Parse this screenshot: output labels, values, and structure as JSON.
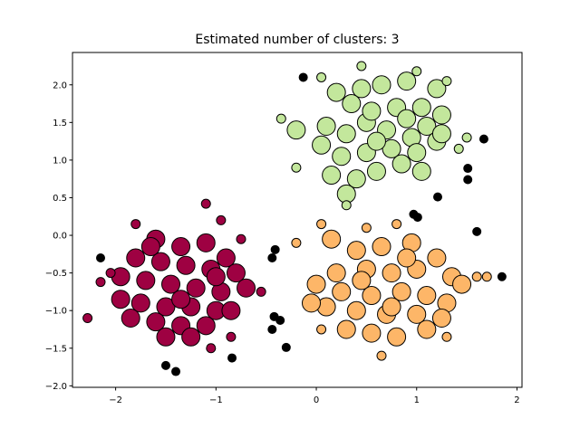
{
  "chart_data": {
    "type": "scatter",
    "title": "Estimated number of clusters: 3",
    "xlabel": "",
    "ylabel": "",
    "xlim": [
      -2.43,
      2.05
    ],
    "ylim": [
      -2.02,
      2.43
    ],
    "xticks": [
      -2,
      -1,
      0,
      1,
      2
    ],
    "xtick_labels": [
      "−2",
      "−1",
      "0",
      "1",
      "2"
    ],
    "yticks": [
      2.0,
      1.5,
      1.0,
      0.5,
      0.0,
      -0.5,
      -1.0,
      -1.5,
      -2.0
    ],
    "ytick_labels": [
      "2.0",
      "1.5",
      "1.0",
      "0.5",
      "0.0",
      "−0.5",
      "−1.0",
      "−1.5",
      "−2.0"
    ],
    "grid": false,
    "legend": "none",
    "point_format": "[x, y, core(1) or border(0)]",
    "series": [
      {
        "color": "#c3e79c",
        "points": [
          [
            0.2,
            1.9,
            1
          ],
          [
            0.45,
            1.95,
            1
          ],
          [
            0.65,
            2.0,
            1
          ],
          [
            0.9,
            2.05,
            1
          ],
          [
            1.2,
            1.95,
            1
          ],
          [
            1.25,
            1.6,
            1
          ],
          [
            1.1,
            1.45,
            1
          ],
          [
            0.95,
            1.3,
            1
          ],
          [
            0.7,
            1.4,
            1
          ],
          [
            0.5,
            1.5,
            1
          ],
          [
            0.3,
            1.35,
            1
          ],
          [
            0.1,
            1.45,
            1
          ],
          [
            -0.2,
            1.4,
            1
          ],
          [
            0.05,
            1.2,
            1
          ],
          [
            0.25,
            1.05,
            1
          ],
          [
            0.5,
            1.1,
            1
          ],
          [
            0.75,
            1.15,
            1
          ],
          [
            1.0,
            1.1,
            1
          ],
          [
            1.2,
            1.25,
            1
          ],
          [
            0.85,
            0.95,
            1
          ],
          [
            0.6,
            0.85,
            1
          ],
          [
            0.4,
            0.75,
            1
          ],
          [
            0.15,
            0.8,
            1
          ],
          [
            1.05,
            0.85,
            1
          ],
          [
            0.3,
            0.55,
            1
          ],
          [
            0.55,
            1.65,
            1
          ],
          [
            0.8,
            1.7,
            1
          ],
          [
            1.05,
            1.7,
            1
          ],
          [
            0.35,
            1.75,
            1
          ],
          [
            0.6,
            1.25,
            1
          ],
          [
            0.9,
            1.55,
            1
          ],
          [
            1.25,
            1.35,
            1
          ],
          [
            0.3,
            0.4,
            0
          ],
          [
            -0.2,
            0.9,
            0
          ],
          [
            -0.35,
            1.55,
            0
          ],
          [
            0.45,
            2.25,
            0
          ],
          [
            1.0,
            2.18,
            0
          ],
          [
            1.5,
            1.3,
            0
          ],
          [
            1.42,
            1.15,
            0
          ],
          [
            0.05,
            2.1,
            0
          ],
          [
            1.3,
            2.05,
            0
          ]
        ]
      },
      {
        "color": "#fdb668",
        "points": [
          [
            0.15,
            -0.05,
            1
          ],
          [
            0.4,
            -0.2,
            1
          ],
          [
            0.65,
            -0.15,
            1
          ],
          [
            0.95,
            -0.1,
            1
          ],
          [
            1.2,
            -0.3,
            1
          ],
          [
            1.35,
            -0.55,
            1
          ],
          [
            1.0,
            -0.45,
            1
          ],
          [
            0.75,
            -0.5,
            1
          ],
          [
            0.5,
            -0.45,
            1
          ],
          [
            0.2,
            -0.5,
            1
          ],
          [
            0.0,
            -0.65,
            1
          ],
          [
            0.25,
            -0.75,
            1
          ],
          [
            0.55,
            -0.8,
            1
          ],
          [
            0.85,
            -0.75,
            1
          ],
          [
            1.1,
            -0.8,
            1
          ],
          [
            1.3,
            -0.9,
            1
          ],
          [
            1.0,
            -1.05,
            1
          ],
          [
            0.7,
            -1.05,
            1
          ],
          [
            0.4,
            -1.0,
            1
          ],
          [
            0.1,
            -0.95,
            1
          ],
          [
            -0.05,
            -0.9,
            1
          ],
          [
            0.3,
            -1.25,
            1
          ],
          [
            0.55,
            -1.3,
            1
          ],
          [
            0.8,
            -1.35,
            1
          ],
          [
            1.1,
            -1.25,
            1
          ],
          [
            1.45,
            -0.65,
            1
          ],
          [
            0.9,
            -0.3,
            1
          ],
          [
            0.45,
            -0.6,
            1
          ],
          [
            0.75,
            -0.95,
            1
          ],
          [
            1.25,
            -1.1,
            1
          ],
          [
            0.05,
            0.15,
            0
          ],
          [
            0.5,
            0.1,
            0
          ],
          [
            0.8,
            0.15,
            0
          ],
          [
            -0.2,
            -0.1,
            0
          ],
          [
            1.6,
            -0.55,
            0
          ],
          [
            1.7,
            -0.55,
            0
          ],
          [
            1.3,
            -1.35,
            0
          ],
          [
            0.65,
            -1.6,
            0
          ],
          [
            0.05,
            -1.25,
            0
          ]
        ]
      },
      {
        "color": "#9e0142",
        "points": [
          [
            -1.6,
            -0.05,
            1
          ],
          [
            -1.35,
            -0.15,
            1
          ],
          [
            -1.1,
            -0.1,
            1
          ],
          [
            -0.9,
            -0.3,
            1
          ],
          [
            -0.8,
            -0.5,
            1
          ],
          [
            -1.05,
            -0.45,
            1
          ],
          [
            -1.3,
            -0.4,
            1
          ],
          [
            -1.55,
            -0.35,
            1
          ],
          [
            -1.8,
            -0.3,
            1
          ],
          [
            -1.95,
            -0.55,
            1
          ],
          [
            -1.7,
            -0.6,
            1
          ],
          [
            -1.45,
            -0.65,
            1
          ],
          [
            -1.2,
            -0.7,
            1
          ],
          [
            -0.95,
            -0.75,
            1
          ],
          [
            -0.7,
            -0.7,
            1
          ],
          [
            -1.95,
            -0.85,
            1
          ],
          [
            -1.75,
            -0.9,
            1
          ],
          [
            -1.5,
            -0.95,
            1
          ],
          [
            -1.25,
            -0.95,
            1
          ],
          [
            -1.0,
            -1.0,
            1
          ],
          [
            -0.85,
            -1.0,
            1
          ],
          [
            -1.85,
            -1.1,
            1
          ],
          [
            -1.6,
            -1.15,
            1
          ],
          [
            -1.35,
            -1.2,
            1
          ],
          [
            -1.1,
            -1.2,
            1
          ],
          [
            -1.5,
            -1.35,
            1
          ],
          [
            -1.25,
            -1.35,
            1
          ],
          [
            -1.65,
            -0.15,
            1
          ],
          [
            -1.0,
            -0.55,
            1
          ],
          [
            -1.35,
            -0.85,
            1
          ],
          [
            -1.1,
            0.42,
            0
          ],
          [
            -1.8,
            0.15,
            0
          ],
          [
            -0.95,
            0.2,
            0
          ],
          [
            -2.05,
            -0.5,
            0
          ],
          [
            -2.15,
            -0.62,
            0
          ],
          [
            -2.28,
            -1.1,
            0
          ],
          [
            -0.85,
            -1.35,
            0
          ],
          [
            -1.05,
            -1.5,
            0
          ],
          [
            -0.55,
            -0.75,
            0
          ],
          [
            -0.75,
            -0.05,
            0
          ]
        ]
      },
      {
        "color": "#000000",
        "points": [
          [
            -0.13,
            2.1,
            0
          ],
          [
            1.67,
            1.28,
            0
          ],
          [
            1.51,
            0.89,
            0
          ],
          [
            1.51,
            0.74,
            0
          ],
          [
            1.21,
            0.51,
            0
          ],
          [
            0.97,
            0.28,
            0
          ],
          [
            1.01,
            0.24,
            0
          ],
          [
            1.6,
            0.05,
            0
          ],
          [
            1.85,
            -0.55,
            0
          ],
          [
            -2.15,
            -0.3,
            0
          ],
          [
            -0.41,
            -0.19,
            0
          ],
          [
            -0.44,
            -0.3,
            0
          ],
          [
            -0.42,
            -1.08,
            0
          ],
          [
            -0.36,
            -1.13,
            0
          ],
          [
            -0.44,
            -1.25,
            0
          ],
          [
            -0.3,
            -1.49,
            0
          ],
          [
            -1.5,
            -1.73,
            0
          ],
          [
            -1.4,
            -1.81,
            0
          ],
          [
            -0.84,
            -1.63,
            0
          ]
        ]
      }
    ]
  }
}
